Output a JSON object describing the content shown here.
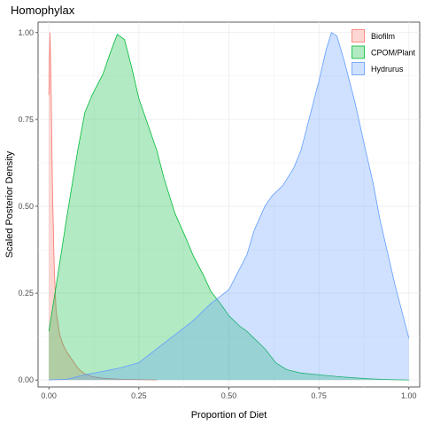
{
  "chart_data": {
    "type": "area",
    "title": "Homophylax",
    "xlabel": "Proportion of Diet",
    "ylabel": "Scaled Posterior Density",
    "xlim": [
      -0.03,
      1.03
    ],
    "ylim": [
      -0.02,
      1.03
    ],
    "x_ticks": [
      0.0,
      0.25,
      0.5,
      0.75,
      1.0
    ],
    "x_tick_labels": [
      "0.00",
      "0.25",
      "0.50",
      "0.75",
      "1.00"
    ],
    "y_ticks": [
      0.0,
      0.25,
      0.5,
      0.75,
      1.0
    ],
    "y_tick_labels": [
      "0.00",
      "0.25",
      "0.50",
      "0.75",
      "1.00"
    ],
    "legend_position": "top-right",
    "series": [
      {
        "name": "Biofilm",
        "fill": "#f8766d",
        "stroke": "#f8766d",
        "points": [
          [
            0.0,
            0.82
          ],
          [
            0.003,
            1.0
          ],
          [
            0.006,
            0.86
          ],
          [
            0.01,
            0.55
          ],
          [
            0.015,
            0.32
          ],
          [
            0.02,
            0.2
          ],
          [
            0.03,
            0.13
          ],
          [
            0.04,
            0.1
          ],
          [
            0.05,
            0.08
          ],
          [
            0.06,
            0.065
          ],
          [
            0.07,
            0.05
          ],
          [
            0.08,
            0.035
          ],
          [
            0.09,
            0.025
          ],
          [
            0.1,
            0.018
          ],
          [
            0.12,
            0.01
          ],
          [
            0.15,
            0.005
          ],
          [
            0.2,
            0.002
          ],
          [
            0.3,
            0.0
          ]
        ]
      },
      {
        "name": "CPOM/Plant",
        "fill": "#00ba38",
        "stroke": "#00ba38",
        "points": [
          [
            0.0,
            0.14
          ],
          [
            0.02,
            0.27
          ],
          [
            0.05,
            0.47
          ],
          [
            0.08,
            0.66
          ],
          [
            0.1,
            0.77
          ],
          [
            0.12,
            0.82
          ],
          [
            0.15,
            0.88
          ],
          [
            0.17,
            0.94
          ],
          [
            0.19,
            0.995
          ],
          [
            0.21,
            0.98
          ],
          [
            0.23,
            0.9
          ],
          [
            0.25,
            0.81
          ],
          [
            0.28,
            0.72
          ],
          [
            0.3,
            0.66
          ],
          [
            0.32,
            0.58
          ],
          [
            0.35,
            0.48
          ],
          [
            0.38,
            0.41
          ],
          [
            0.4,
            0.36
          ],
          [
            0.43,
            0.3
          ],
          [
            0.45,
            0.255
          ],
          [
            0.48,
            0.215
          ],
          [
            0.5,
            0.185
          ],
          [
            0.53,
            0.155
          ],
          [
            0.55,
            0.14
          ],
          [
            0.57,
            0.12
          ],
          [
            0.6,
            0.09
          ],
          [
            0.63,
            0.05
          ],
          [
            0.66,
            0.03
          ],
          [
            0.7,
            0.02
          ],
          [
            0.75,
            0.015
          ],
          [
            0.8,
            0.01
          ],
          [
            0.85,
            0.006
          ],
          [
            0.9,
            0.003
          ],
          [
            0.95,
            0.001
          ],
          [
            1.0,
            0.0
          ]
        ]
      },
      {
        "name": "Hydrurus",
        "fill": "#619cff",
        "stroke": "#619cff",
        "points": [
          [
            0.0,
            0.0
          ],
          [
            0.05,
            0.002
          ],
          [
            0.1,
            0.015
          ],
          [
            0.15,
            0.025
          ],
          [
            0.2,
            0.035
          ],
          [
            0.25,
            0.05
          ],
          [
            0.3,
            0.09
          ],
          [
            0.35,
            0.13
          ],
          [
            0.4,
            0.17
          ],
          [
            0.45,
            0.22
          ],
          [
            0.5,
            0.26
          ],
          [
            0.52,
            0.3
          ],
          [
            0.55,
            0.36
          ],
          [
            0.57,
            0.43
          ],
          [
            0.6,
            0.5
          ],
          [
            0.62,
            0.53
          ],
          [
            0.65,
            0.56
          ],
          [
            0.68,
            0.61
          ],
          [
            0.7,
            0.66
          ],
          [
            0.72,
            0.74
          ],
          [
            0.75,
            0.86
          ],
          [
            0.77,
            0.95
          ],
          [
            0.785,
            1.0
          ],
          [
            0.8,
            0.99
          ],
          [
            0.82,
            0.92
          ],
          [
            0.85,
            0.8
          ],
          [
            0.88,
            0.66
          ],
          [
            0.9,
            0.57
          ],
          [
            0.92,
            0.46
          ],
          [
            0.94,
            0.37
          ],
          [
            0.96,
            0.28
          ],
          [
            0.98,
            0.2
          ],
          [
            1.0,
            0.12
          ]
        ]
      }
    ]
  }
}
